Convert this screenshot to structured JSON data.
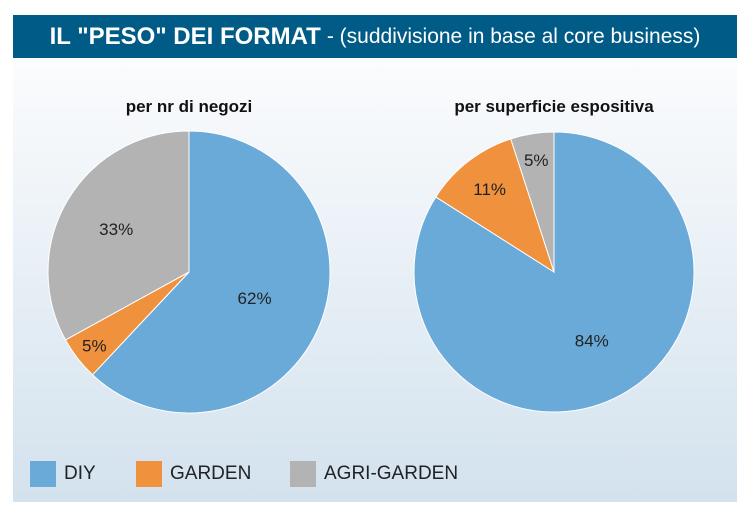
{
  "header": {
    "title": "IL \"PESO\" DEI FORMAT",
    "subtitle": "- (suddivisione in base al core business)"
  },
  "chart_data": [
    {
      "type": "pie",
      "title": "per nr di negozi",
      "categories": [
        "DIY",
        "GARDEN",
        "AGRI-GARDEN"
      ],
      "values": [
        62,
        5,
        33
      ],
      "labels": [
        "62%",
        "5%",
        "33%"
      ]
    },
    {
      "type": "pie",
      "title": "per superficie espositiva",
      "categories": [
        "DIY",
        "GARDEN",
        "AGRI-GARDEN"
      ],
      "values": [
        84,
        11,
        5
      ],
      "labels": [
        "84%",
        "11%",
        "5%"
      ]
    }
  ],
  "legend": [
    {
      "label": "DIY",
      "color": "#6aaad8"
    },
    {
      "label": "GARDEN",
      "color": "#f0913e"
    },
    {
      "label": "AGRI-GARDEN",
      "color": "#b3b3b3"
    }
  ]
}
